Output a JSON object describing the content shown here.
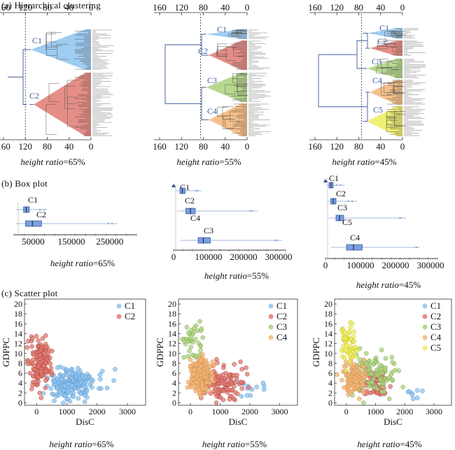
{
  "sections": {
    "a": "(a) Hierarchical clustering",
    "b": "(b) Box plot",
    "c": "(c) Scatter plot"
  },
  "caption_prefix": "height ratio",
  "panels": [
    {
      "ratio_label": "=65%",
      "cut": 120,
      "clusters": [
        "C1",
        "C2"
      ],
      "colors": [
        "#8ec3ee",
        "#e07a72"
      ]
    },
    {
      "ratio_label": "=55%",
      "cut": 85,
      "clusters": [
        "C1",
        "C2",
        "C3",
        "C4"
      ],
      "colors": [
        "#8ec3ee",
        "#e07a72",
        "#a9d17a",
        "#f3b577"
      ]
    },
    {
      "ratio_label": "=45%",
      "cut": 75,
      "clusters": [
        "C1",
        "C2",
        "C3",
        "C4",
        "C5"
      ],
      "colors": [
        "#8ec3ee",
        "#e07a72",
        "#a9d17a",
        "#f3b577",
        "#eded5a"
      ]
    }
  ],
  "chart_data": [
    {
      "type": "dendrogram",
      "ratio": "height ratio=65%",
      "x_ticks": [
        160,
        120,
        80,
        40,
        0
      ],
      "clusters": [
        "C1",
        "C2"
      ],
      "colors": {
        "C1": "#8ec3ee",
        "C2": "#e07a72"
      }
    },
    {
      "type": "dendrogram",
      "ratio": "height ratio=55%",
      "x_ticks": [
        160,
        120,
        80,
        40,
        0
      ],
      "clusters": [
        "C1",
        "C2",
        "C3",
        "C4"
      ],
      "colors": {
        "C1": "#8ec3ee",
        "C2": "#e07a72",
        "C3": "#a9d17a",
        "C4": "#f3b577"
      }
    },
    {
      "type": "dendrogram",
      "ratio": "height ratio=45%",
      "x_ticks": [
        160,
        120,
        80,
        40,
        0
      ],
      "clusters": [
        "C1",
        "C2",
        "C3",
        "C4",
        "C5"
      ],
      "colors": {
        "C1": "#8ec3ee",
        "C2": "#e07a72",
        "C3": "#a9d17a",
        "C4": "#f3b577",
        "C5": "#eded5a"
      }
    },
    {
      "type": "box",
      "ratio": "height ratio=65%",
      "x_ticks": [
        50000,
        150000,
        250000
      ],
      "x_tick_labels": [
        "50000",
        "150000",
        "250000"
      ],
      "xlim": [
        0,
        320000
      ],
      "boxes": [
        {
          "name": "C1",
          "q1": 25000,
          "median": 32000,
          "q3": 40000,
          "whisker_low": 5000,
          "whisker_high": 85000
        },
        {
          "name": "C2",
          "q1": 30000,
          "median": 48000,
          "q3": 72000,
          "whisker_low": 5000,
          "whisker_high": 270000
        }
      ]
    },
    {
      "type": "box",
      "ratio": "height ratio=55%",
      "x_ticks": [
        0,
        100000,
        200000,
        300000
      ],
      "x_tick_labels": [
        "0",
        "100000",
        "200000",
        "300000"
      ],
      "xlim": [
        0,
        320000
      ],
      "boxes": [
        {
          "name": "C1",
          "q1": 0,
          "median": 0,
          "q3": 0,
          "whisker_low": 0,
          "whisker_high": 0
        },
        {
          "name": "C2",
          "q1": 18000,
          "median": 25000,
          "q3": 33000,
          "whisker_low": 5000,
          "whisker_high": 80000
        },
        {
          "name": "C4",
          "q1": 35000,
          "median": 48000,
          "q3": 62000,
          "whisker_low": 10000,
          "whisker_high": 240000
        },
        {
          "name": "C3",
          "q1": 70000,
          "median": 85000,
          "q3": 105000,
          "whisker_low": 20000,
          "whisker_high": 310000
        }
      ]
    },
    {
      "type": "box",
      "ratio": "height ratio=45%",
      "x_ticks": [
        0,
        100000,
        200000,
        300000
      ],
      "x_tick_labels": [
        "0",
        "100000",
        "200000",
        "300000"
      ],
      "xlim": [
        0,
        320000
      ],
      "boxes": [
        {
          "name": "C1",
          "q1": 0,
          "median": 0,
          "q3": 0,
          "whisker_low": 0,
          "whisker_high": 0
        },
        {
          "name": "C2",
          "q1": 10000,
          "median": 16000,
          "q3": 22000,
          "whisker_low": 3000,
          "whisker_high": 55000
        },
        {
          "name": "C3",
          "q1": 15000,
          "median": 22000,
          "q3": 30000,
          "whisker_low": 5000,
          "whisker_high": 90000
        },
        {
          "name": "C5",
          "q1": 30000,
          "median": 40000,
          "q3": 52000,
          "whisker_low": 8000,
          "whisker_high": 230000
        },
        {
          "name": "C4",
          "q1": 60000,
          "median": 80000,
          "q3": 105000,
          "whisker_low": 15000,
          "whisker_high": 270000
        }
      ]
    },
    {
      "type": "scatter",
      "ratio": "height ratio=65%",
      "xlabel": "DisC",
      "ylabel": "GDPPC",
      "x_ticks": [
        0,
        1000,
        2000,
        3000
      ],
      "y_ticks": [
        0,
        2,
        4,
        6,
        8,
        10,
        12,
        14,
        16,
        18,
        20
      ],
      "xlim": [
        -400,
        3600
      ],
      "ylim": [
        -0.5,
        21
      ],
      "legend": [
        "C1",
        "C2"
      ],
      "legend_position": "top-right",
      "series": [
        {
          "name": "C1",
          "color": "#8ec3ee",
          "points": []
        },
        {
          "name": "C2",
          "color": "#e07a72",
          "points": []
        }
      ]
    },
    {
      "type": "scatter",
      "ratio": "height ratio=55%",
      "xlabel": "DisC",
      "ylabel": "GDPPC",
      "x_ticks": [
        0,
        1000,
        2000,
        3000
      ],
      "y_ticks": [
        0,
        2,
        4,
        6,
        8,
        10,
        12,
        14,
        16,
        18,
        20
      ],
      "xlim": [
        -400,
        3600
      ],
      "ylim": [
        -0.5,
        21
      ],
      "legend": [
        "C1",
        "C2",
        "C3",
        "C4"
      ],
      "legend_position": "top-right",
      "series": [
        {
          "name": "C1",
          "color": "#8ec3ee",
          "points": []
        },
        {
          "name": "C2",
          "color": "#e07a72",
          "points": []
        },
        {
          "name": "C3",
          "color": "#a9d17a",
          "points": []
        },
        {
          "name": "C4",
          "color": "#f3b577",
          "points": []
        }
      ]
    },
    {
      "type": "scatter",
      "ratio": "height ratio=45%",
      "xlabel": "DisC",
      "ylabel": "GDPPC",
      "x_ticks": [
        0,
        1000,
        2000,
        3000
      ],
      "y_ticks": [
        0,
        2,
        4,
        6,
        8,
        10,
        12,
        14,
        16,
        18,
        20
      ],
      "xlim": [
        -400,
        3600
      ],
      "ylim": [
        -0.5,
        21
      ],
      "legend": [
        "C1",
        "C2",
        "C3",
        "C4",
        "C5"
      ],
      "legend_position": "top-right",
      "series": [
        {
          "name": "C1",
          "color": "#8ec3ee",
          "points": []
        },
        {
          "name": "C2",
          "color": "#e07a72",
          "points": []
        },
        {
          "name": "C3",
          "color": "#a9d17a",
          "points": []
        },
        {
          "name": "C4",
          "color": "#f3b577",
          "points": []
        },
        {
          "name": "C5",
          "color": "#eded5a",
          "points": []
        }
      ]
    }
  ]
}
